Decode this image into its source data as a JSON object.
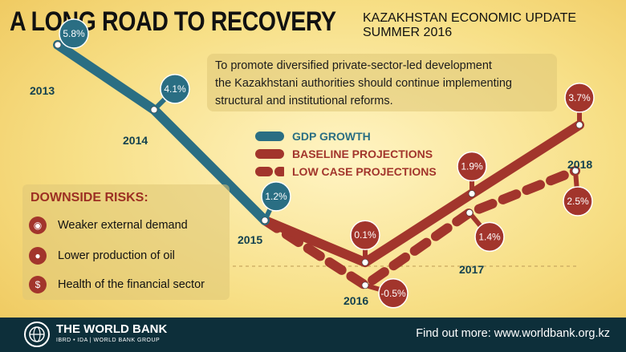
{
  "header": {
    "title": "A LONG ROAD TO RECOVERY",
    "subtitle_line1": "KAZAKHSTAN ECONOMIC UPDATE",
    "subtitle_line2": "SUMMER 2016"
  },
  "note": {
    "lines": [
      "To promote diversified private-sector-led development",
      "the Kazakhstani authorities should continue implementing",
      "structural and institutional reforms."
    ]
  },
  "colors": {
    "gdp": "#2a6e83",
    "baseline": "#a2352c",
    "lowcase": "#a2352c",
    "text_dark": "#13414f"
  },
  "legend": {
    "gdp": "GDP GROWTH",
    "baseline": "BASELINE PROJECTIONS",
    "lowcase": "LOW CASE PROJECTIONS"
  },
  "risks": {
    "title": "DOWNSIDE RISKS:",
    "items": [
      {
        "label": "Weaker external demand",
        "icon": "globe-icon"
      },
      {
        "label": "Lower production of oil",
        "icon": "oil-drop-icon"
      },
      {
        "label": "Health of the financial sector",
        "icon": "briefcase-dollar-icon"
      }
    ]
  },
  "footer": {
    "org_name": "THE WORLD BANK",
    "org_sub": "IBRD • IDA | WORLD BANK GROUP",
    "find_more": "Find out more: www.worldbank.org.kz"
  },
  "chart_data": {
    "type": "line",
    "title": "",
    "xlabel": "",
    "ylabel": "",
    "categories": [
      "2013",
      "2014",
      "2015",
      "2016",
      "2017",
      "2018"
    ],
    "series": [
      {
        "name": "GDP GROWTH",
        "values": [
          5.8,
          4.1,
          1.2,
          null,
          null,
          null
        ],
        "labels": [
          "5.8%",
          "4.1%",
          "1.2%",
          null,
          null,
          null
        ]
      },
      {
        "name": "BASELINE PROJECTIONS",
        "values": [
          null,
          null,
          1.2,
          0.1,
          1.9,
          3.7
        ],
        "labels": [
          null,
          null,
          null,
          "0.1%",
          "1.9%",
          "3.7%"
        ]
      },
      {
        "name": "LOW CASE PROJECTIONS",
        "values": [
          null,
          null,
          1.2,
          -0.5,
          1.4,
          2.5
        ],
        "labels": [
          null,
          null,
          null,
          "-0.5%",
          "1.4%",
          "2.5%"
        ]
      }
    ],
    "grid": false
  }
}
